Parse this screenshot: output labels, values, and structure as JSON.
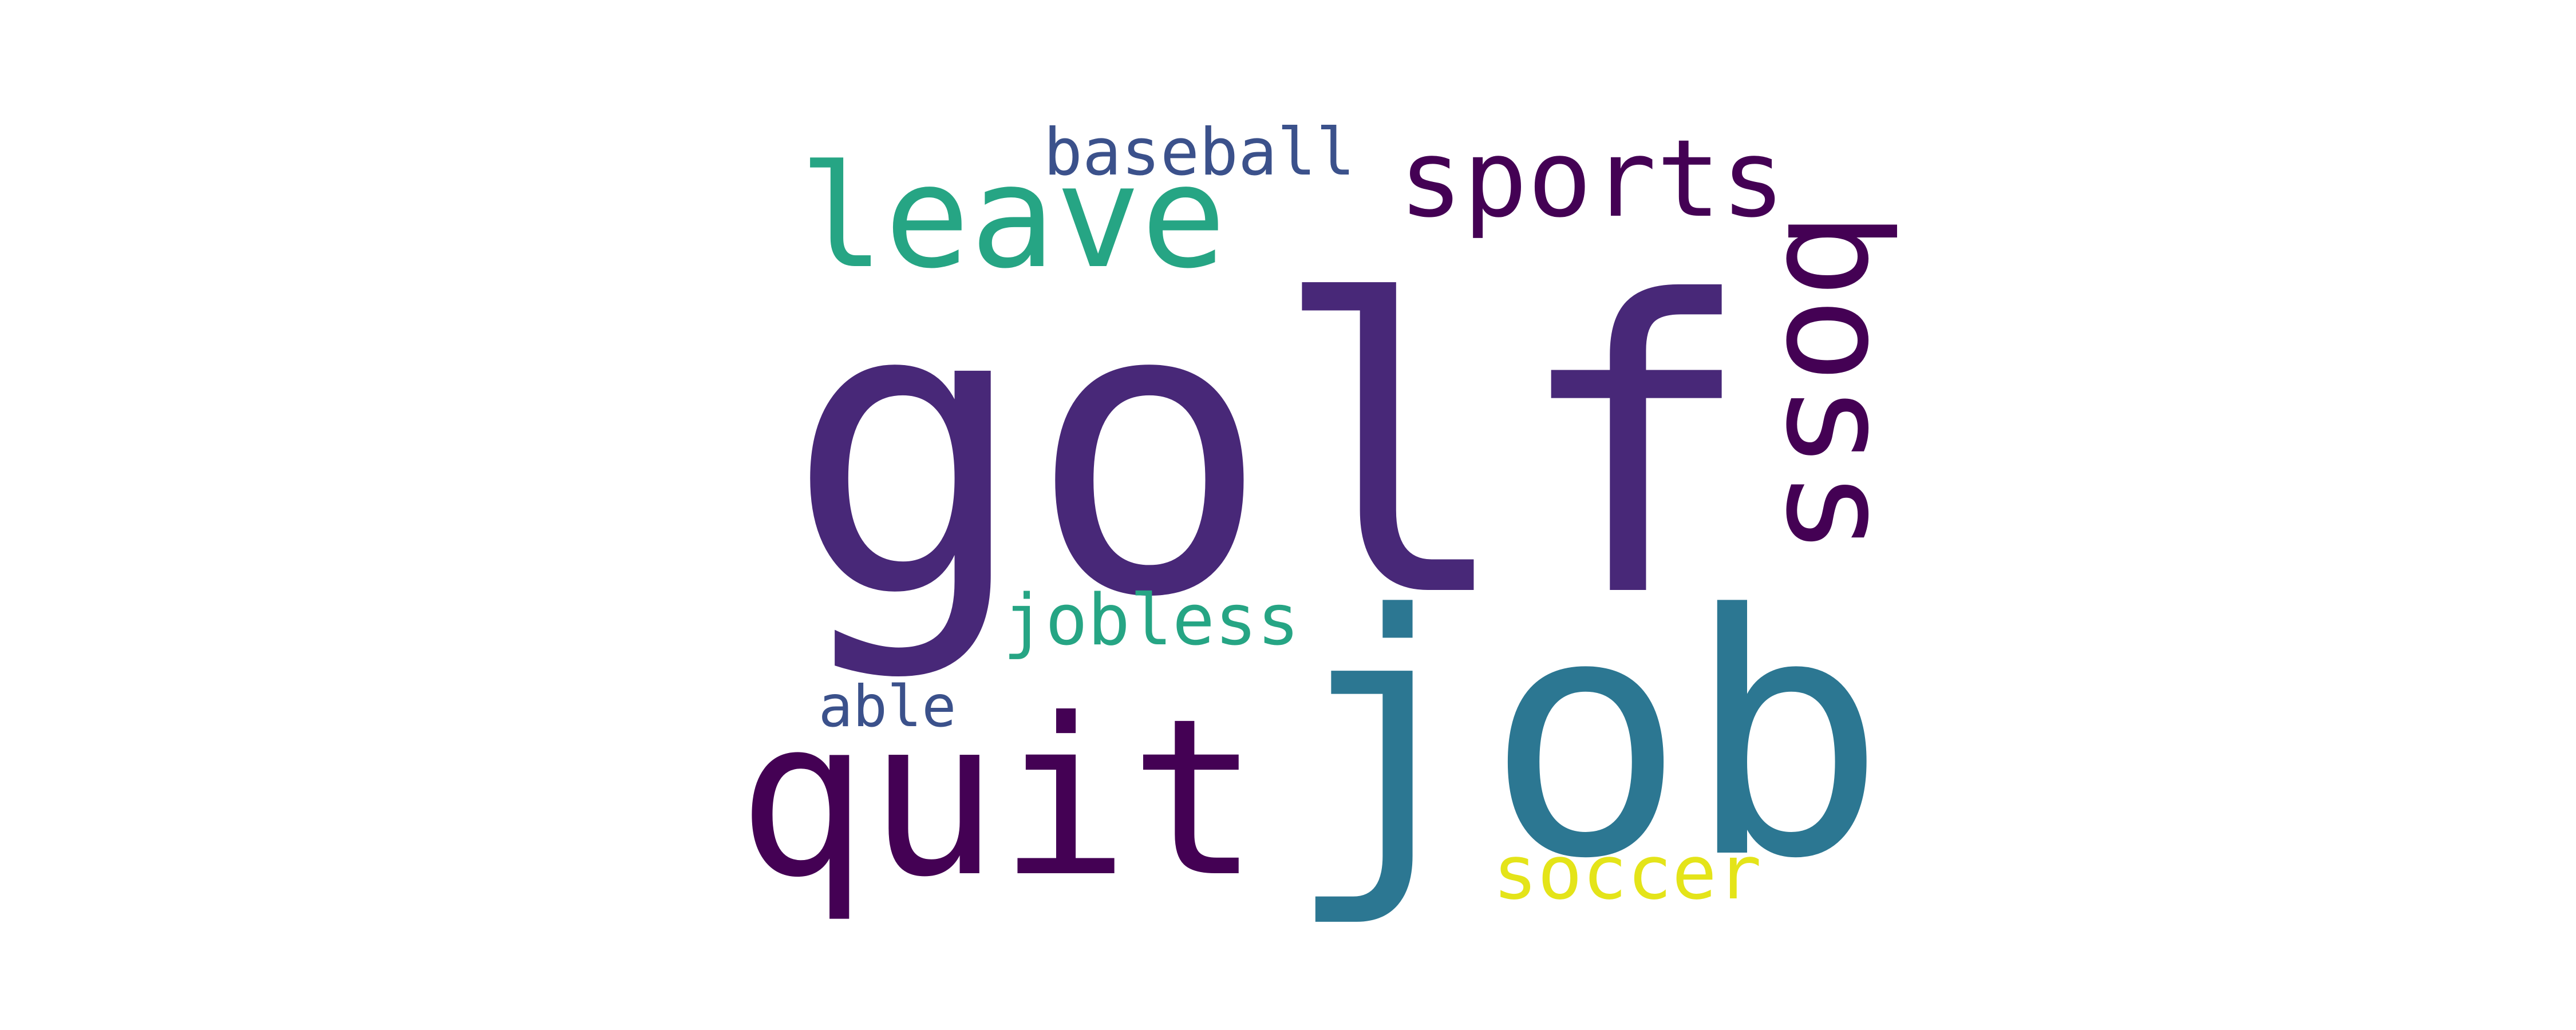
{
  "words": [
    {
      "key": "golf",
      "text": "golf",
      "color": "#482878",
      "vertical": false
    },
    {
      "key": "job",
      "text": "job",
      "color": "#2c7792",
      "vertical": false
    },
    {
      "key": "quit",
      "text": "quit",
      "color": "#440154",
      "vertical": false
    },
    {
      "key": "leave",
      "text": "leave",
      "color": "#26a584",
      "vertical": false
    },
    {
      "key": "boss",
      "text": "boss",
      "color": "#440154",
      "vertical": true
    },
    {
      "key": "sports",
      "text": "sports",
      "color": "#440154",
      "vertical": false
    },
    {
      "key": "soccer",
      "text": "soccer",
      "color": "#e4e419",
      "vertical": false
    },
    {
      "key": "baseball",
      "text": "baseball",
      "color": "#3b518b",
      "vertical": false
    },
    {
      "key": "jobless",
      "text": "jobless",
      "color": "#26a584",
      "vertical": false
    },
    {
      "key": "able",
      "text": "able",
      "color": "#3b518b",
      "vertical": false
    }
  ]
}
